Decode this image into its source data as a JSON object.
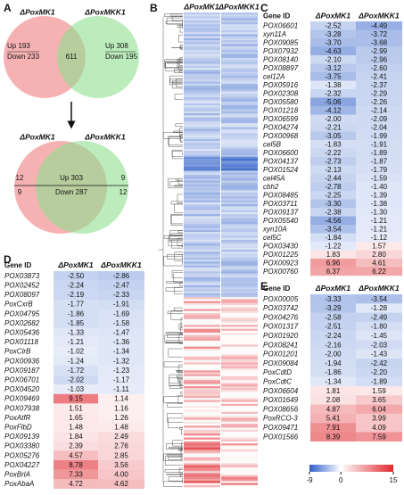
{
  "panels": {
    "a": {
      "label": "A",
      "top_venn": {
        "left_name": "ΔPoxMK1",
        "right_name": "ΔPoxMKK1",
        "left_up": "Up 193",
        "left_down": "Down 233",
        "center": "611",
        "right_up": "Up 308",
        "right_down": "Down 195"
      },
      "bottom_venn": {
        "left_name": "ΔPoxMK1",
        "right_name": "ΔPoxMKK1",
        "left_up": "12",
        "left_down": "9",
        "center_up": "Up 303",
        "center_down": "Down 287",
        "right_up": "9",
        "right_down": "12"
      }
    },
    "b": {
      "label": "B",
      "col1": "ΔPoxMK1",
      "col2": "ΔPoxMKK1"
    },
    "colorbar": {
      "range": [
        -9,
        15
      ],
      "ticks": [
        -9,
        0,
        15
      ]
    },
    "c": {
      "label": "C",
      "header": [
        "Gene ID",
        "ΔPoxMK1",
        "ΔPoxMKK1"
      ],
      "rows": [
        [
          "POX06601",
          "-2.52",
          "-4.49"
        ],
        [
          "xyn11A",
          "-3.28",
          "-3.72"
        ],
        [
          "POX09085",
          "-3.70",
          "-3.68"
        ],
        [
          "POX07932",
          "-4.63",
          "-2.99"
        ],
        [
          "POX08140",
          "-2.10",
          "-2.96"
        ],
        [
          "POX08897",
          "-3.12",
          "-2.60"
        ],
        [
          "cel12A",
          "-3.75",
          "-2.41"
        ],
        [
          "POX05916",
          "-1.38",
          "-2.37"
        ],
        [
          "POX02308",
          "-2.32",
          "-2.29"
        ],
        [
          "POX05580",
          "-5.06",
          "-2.26"
        ],
        [
          "POX01218",
          "-4.12",
          "-2.14"
        ],
        [
          "POX06599",
          "-2.00",
          "-2.09"
        ],
        [
          "POX04274",
          "-2.21",
          "-2.04"
        ],
        [
          "POX00968",
          "-3.05",
          "-1.99"
        ],
        [
          "cel5B",
          "-1.83",
          "-1.91"
        ],
        [
          "POX06600",
          "-2.22",
          "-1.89"
        ],
        [
          "POX04137",
          "-2.73",
          "-1.87"
        ],
        [
          "POX01524",
          "-2.13",
          "-1.79"
        ],
        [
          "cel45A",
          "-2.44",
          "-1.59"
        ],
        [
          "cbh2",
          "-2.78",
          "-1.40"
        ],
        [
          "POX08485",
          "-2.25",
          "-1.39"
        ],
        [
          "POX03711",
          "-3.30",
          "-1.38"
        ],
        [
          "POX09137",
          "-2.38",
          "-1.30"
        ],
        [
          "POX05540",
          "-4.56",
          "-1.21"
        ],
        [
          "xyn10A",
          "-3.54",
          "-1.21"
        ],
        [
          "cel5C",
          "-1.84",
          "-1.12"
        ],
        [
          "POX03430",
          "-1.22",
          "1.57"
        ],
        [
          "POX01225",
          "1.83",
          "2.80"
        ],
        [
          "POX00923",
          "6.96",
          "4.61"
        ],
        [
          "POX00760",
          "6.37",
          "6.22"
        ]
      ]
    },
    "d": {
      "label": "D",
      "header": [
        "Gene ID",
        "ΔPoxMK1",
        "ΔPoxMKK1"
      ],
      "rows": [
        [
          "POX03873",
          "-2.50",
          "-2.86"
        ],
        [
          "POX02452",
          "-2.24",
          "-2.47"
        ],
        [
          "POX08097",
          "-2.19",
          "-2.33"
        ],
        [
          "PoxCxrB",
          "-1.77",
          "-1.91"
        ],
        [
          "POX04795",
          "-1.86",
          "-1.69"
        ],
        [
          "POX02682",
          "-1.85",
          "-1.58"
        ],
        [
          "POX05436",
          "-1.33",
          "-1.47"
        ],
        [
          "POX01118",
          "-1.21",
          "-1.36"
        ],
        [
          "PoxClrB",
          "-1.02",
          "-1.34"
        ],
        [
          "POX00936",
          "-1.24",
          "-1.32"
        ],
        [
          "POX09187",
          "-1.72",
          "-1.23"
        ],
        [
          "POX06701",
          "-2.02",
          "-1.17"
        ],
        [
          "POX04520",
          "-1.03",
          "-1.11"
        ],
        [
          "POX09469",
          "9.15",
          "1.14"
        ],
        [
          "POX07938",
          "1.51",
          "1.16"
        ],
        [
          "PoxAtfR",
          "1.65",
          "1.26"
        ],
        [
          "PoxFlbD",
          "1.48",
          "1.48"
        ],
        [
          "POX09139",
          "1.84",
          "2.49"
        ],
        [
          "POX03380",
          "2.39",
          "2.76"
        ],
        [
          "POX05276",
          "4.57",
          "2.85"
        ],
        [
          "POX04227",
          "8.78",
          "3.56"
        ],
        [
          "PoxBrlA",
          "7.33",
          "4.00"
        ],
        [
          "PoxAbaA",
          "4.72",
          "4.62"
        ]
      ]
    },
    "e": {
      "label": "E",
      "header": [
        "Gene ID",
        "ΔPoxMK1",
        "ΔPoxMKK1"
      ],
      "rows": [
        [
          "POX00005",
          "-3.33",
          "-3.54"
        ],
        [
          "POX03742",
          "-3.29",
          "-1.28"
        ],
        [
          "POX04276",
          "-2.58",
          "-2.49"
        ],
        [
          "POX01317",
          "-2.51",
          "-1.80"
        ],
        [
          "POX01920",
          "-2.24",
          "-1.45"
        ],
        [
          "POX08241",
          "-2.16",
          "-2.03"
        ],
        [
          "POX01201",
          "-2.00",
          "-1.43"
        ],
        [
          "POX09084",
          "-1.94",
          "-2.42"
        ],
        [
          "PoxCdtD",
          "-1.86",
          "-2.20"
        ],
        [
          "PoxCdtC",
          "-1.34",
          "-1.89"
        ],
        [
          "POX06604",
          "1.81",
          "1.59"
        ],
        [
          "POX01649",
          "2.08",
          "3.65"
        ],
        [
          "POX08656",
          "4.87",
          "6.04"
        ],
        [
          "PoxRCO-3",
          "5.41",
          "3.99"
        ],
        [
          "POX09471",
          "7.91",
          "4.09"
        ],
        [
          "POX01566",
          "8.39",
          "7.59"
        ]
      ]
    }
  }
}
